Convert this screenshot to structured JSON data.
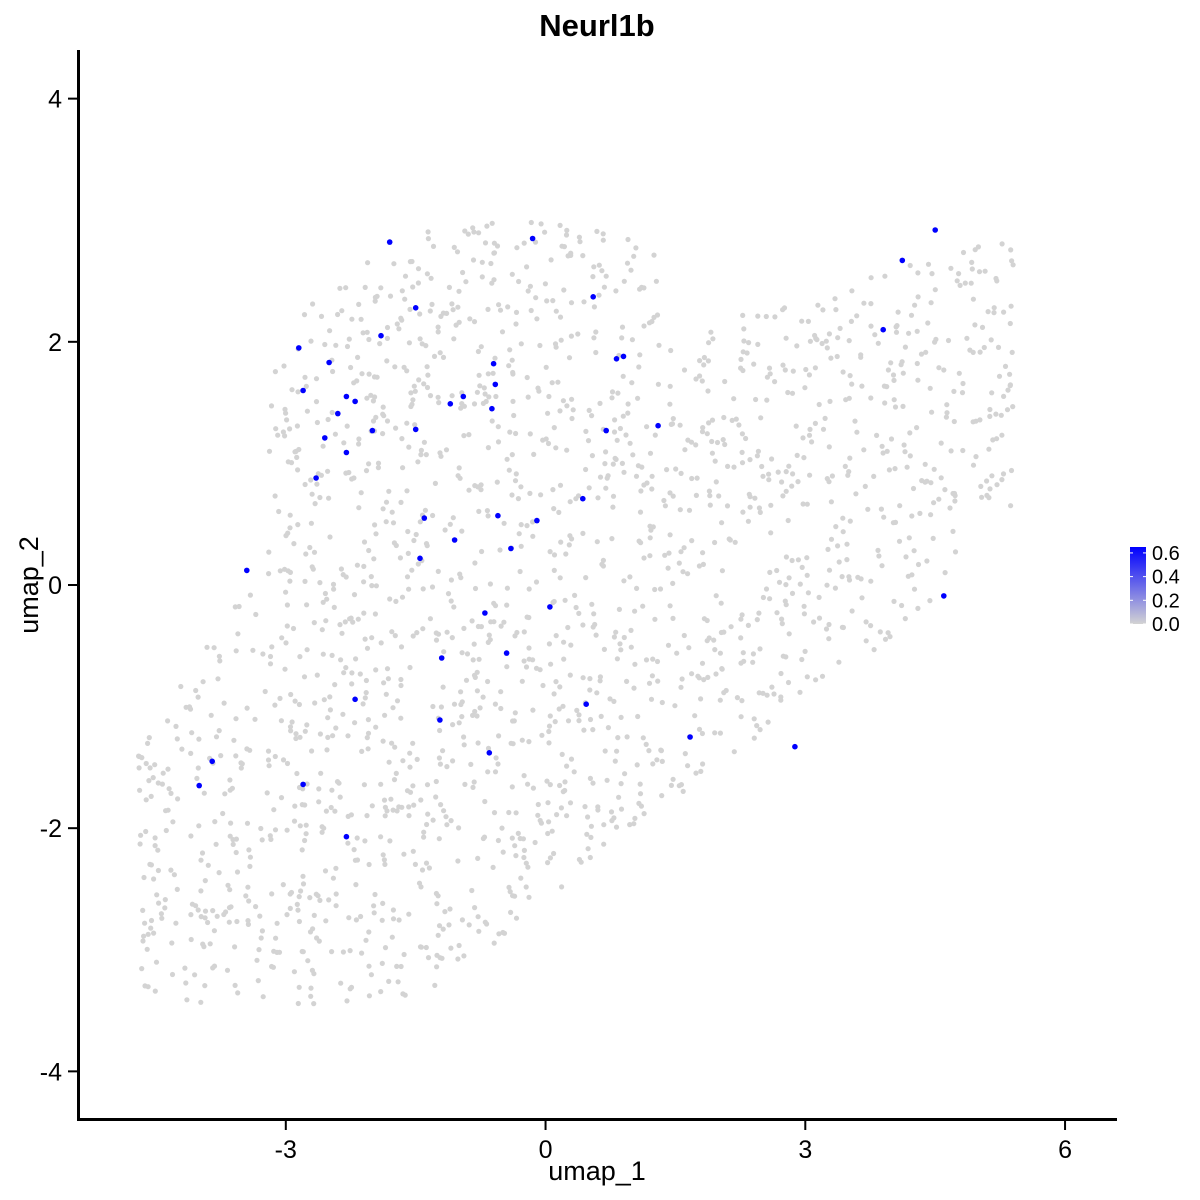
{
  "chart_data": {
    "type": "scatter",
    "title": "Neurl1b",
    "xlabel": "umap_1",
    "ylabel": "umap_2",
    "xlim": [
      -5.4,
      6.6
    ],
    "ylim": [
      -4.4,
      4.4
    ],
    "x_ticks": [
      -3,
      0,
      3,
      6
    ],
    "y_ticks": [
      -4,
      -2,
      0,
      2,
      4
    ],
    "x_tick_labels": [
      "-3",
      "0",
      "3",
      "6"
    ],
    "y_tick_labels": [
      "-4",
      "-2",
      "0",
      "2",
      "4"
    ],
    "grid": false,
    "legend": {
      "placement": "right",
      "type": "colorbar",
      "min": 0,
      "max": 0.65,
      "ticks": [
        0.0,
        0.2,
        0.4,
        0.6
      ],
      "tick_labels": [
        "0.0",
        "0.2",
        "0.4",
        "0.6"
      ],
      "low_color": "#d3d3d3",
      "high_color": "#0000ff"
    },
    "background_color": "#d3d3d3",
    "background_cells_note": "",
    "series": [
      {
        "color": "#0000ff",
        "points": [
          {
            "x": 4.5,
            "y": 2.92
          },
          {
            "x": 4.12,
            "y": 2.67
          },
          {
            "x": -0.15,
            "y": 2.85
          },
          {
            "x": -1.8,
            "y": 2.82
          },
          {
            "x": 0.55,
            "y": 2.37
          },
          {
            "x": -1.5,
            "y": 2.28
          },
          {
            "x": 3.9,
            "y": 2.1
          },
          {
            "x": -1.9,
            "y": 2.05
          },
          {
            "x": -2.85,
            "y": 1.95
          },
          {
            "x": 0.9,
            "y": 1.88
          },
          {
            "x": 0.82,
            "y": 1.86
          },
          {
            "x": -2.5,
            "y": 1.83
          },
          {
            "x": -0.6,
            "y": 1.82
          },
          {
            "x": -0.58,
            "y": 1.65
          },
          {
            "x": -2.8,
            "y": 1.6
          },
          {
            "x": -0.95,
            "y": 1.55
          },
          {
            "x": -2.3,
            "y": 1.55
          },
          {
            "x": -2.2,
            "y": 1.51
          },
          {
            "x": -1.1,
            "y": 1.49
          },
          {
            "x": -0.62,
            "y": 1.45
          },
          {
            "x": -2.4,
            "y": 1.41
          },
          {
            "x": 1.3,
            "y": 1.31
          },
          {
            "x": -1.5,
            "y": 1.28
          },
          {
            "x": 0.7,
            "y": 1.27
          },
          {
            "x": -2.0,
            "y": 1.27
          },
          {
            "x": -2.55,
            "y": 1.21
          },
          {
            "x": -2.3,
            "y": 1.09
          },
          {
            "x": -2.65,
            "y": 0.88
          },
          {
            "x": 0.43,
            "y": 0.71
          },
          {
            "x": -0.55,
            "y": 0.57
          },
          {
            "x": -1.4,
            "y": 0.55
          },
          {
            "x": -0.1,
            "y": 0.53
          },
          {
            "x": -1.05,
            "y": 0.37
          },
          {
            "x": -0.4,
            "y": 0.3
          },
          {
            "x": -1.45,
            "y": 0.22
          },
          {
            "x": -3.45,
            "y": 0.12
          },
          {
            "x": 4.6,
            "y": -0.09
          },
          {
            "x": 0.05,
            "y": -0.18
          },
          {
            "x": -0.7,
            "y": -0.23
          },
          {
            "x": -0.45,
            "y": -0.56
          },
          {
            "x": -1.2,
            "y": -0.6
          },
          {
            "x": -2.2,
            "y": -0.94
          },
          {
            "x": 0.47,
            "y": -0.98
          },
          {
            "x": -1.22,
            "y": -1.11
          },
          {
            "x": 1.67,
            "y": -1.25
          },
          {
            "x": 2.88,
            "y": -1.33
          },
          {
            "x": -0.65,
            "y": -1.38
          },
          {
            "x": -3.85,
            "y": -1.45
          },
          {
            "x": -4.0,
            "y": -1.65
          },
          {
            "x": -2.8,
            "y": -1.64
          },
          {
            "x": -2.3,
            "y": -2.07
          }
        ]
      }
    ]
  }
}
